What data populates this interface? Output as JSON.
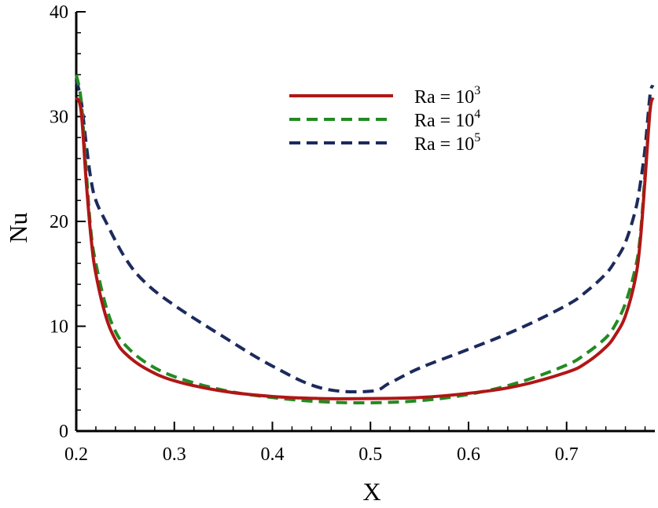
{
  "chart_data": {
    "type": "line",
    "xlabel": "X",
    "ylabel": "Nu",
    "xlim": [
      0.2,
      0.79
    ],
    "ylim": [
      0,
      40
    ],
    "x_ticks": [
      0.2,
      0.3,
      0.4,
      0.5,
      0.6,
      0.7
    ],
    "x_tick_labels": [
      "0.2",
      "0.3",
      "0.4",
      "0.5",
      "0.6",
      "0.7"
    ],
    "y_ticks": [
      0,
      10,
      20,
      30,
      40
    ],
    "y_tick_labels": [
      "0",
      "10",
      "20",
      "30",
      "40"
    ],
    "legend_position": "top-center",
    "series": [
      {
        "name": "Ra = 10^3",
        "label_base": "Ra = 10",
        "label_exp": "3",
        "color": "#b01616",
        "dash": "solid",
        "x": [
          0.2,
          0.205,
          0.21,
          0.215,
          0.22,
          0.23,
          0.24,
          0.25,
          0.27,
          0.3,
          0.35,
          0.4,
          0.45,
          0.5,
          0.55,
          0.6,
          0.65,
          0.7,
          0.72,
          0.74,
          0.75,
          0.76,
          0.77,
          0.775,
          0.78,
          0.785,
          0.788
        ],
        "y": [
          31.8,
          30.5,
          24.0,
          18.5,
          15.0,
          11.0,
          8.7,
          7.4,
          6.0,
          4.8,
          3.8,
          3.3,
          3.1,
          3.1,
          3.2,
          3.6,
          4.3,
          5.6,
          6.5,
          8.0,
          9.2,
          11.0,
          14.5,
          18.0,
          24.0,
          30.5,
          31.8
        ]
      },
      {
        "name": "Ra = 10^4",
        "label_base": "Ra = 10",
        "label_exp": "4",
        "color": "#228b22",
        "dash": "dashed",
        "x": [
          0.2,
          0.205,
          0.21,
          0.215,
          0.22,
          0.23,
          0.24,
          0.25,
          0.27,
          0.3,
          0.35,
          0.4,
          0.45,
          0.5,
          0.55,
          0.6,
          0.65,
          0.7,
          0.72,
          0.74,
          0.75,
          0.76,
          0.77,
          0.775,
          0.78,
          0.785,
          0.788
        ],
        "y": [
          34.0,
          31.5,
          25.0,
          19.0,
          16.0,
          12.0,
          9.5,
          8.2,
          6.6,
          5.2,
          3.9,
          3.2,
          2.8,
          2.7,
          2.9,
          3.5,
          4.6,
          6.3,
          7.4,
          8.9,
          10.2,
          12.2,
          15.5,
          18.5,
          24.5,
          30.5,
          32.0
        ]
      },
      {
        "name": "Ra = 10^5",
        "label_base": "Ra = 10",
        "label_exp": "5",
        "color": "#1c2a5c",
        "dash": "dashed",
        "x": [
          0.2,
          0.205,
          0.21,
          0.215,
          0.22,
          0.23,
          0.25,
          0.27,
          0.3,
          0.35,
          0.4,
          0.45,
          0.5,
          0.52,
          0.55,
          0.6,
          0.65,
          0.7,
          0.72,
          0.74,
          0.75,
          0.76,
          0.77,
          0.775,
          0.78,
          0.785,
          0.788
        ],
        "y": [
          33.5,
          31.5,
          27.5,
          24.0,
          22.0,
          20.0,
          16.5,
          14.2,
          12.0,
          9.0,
          6.2,
          4.1,
          3.8,
          4.6,
          6.0,
          7.8,
          9.7,
          12.0,
          13.3,
          15.0,
          16.3,
          18.0,
          21.0,
          23.5,
          27.0,
          32.0,
          33.0
        ]
      }
    ]
  }
}
